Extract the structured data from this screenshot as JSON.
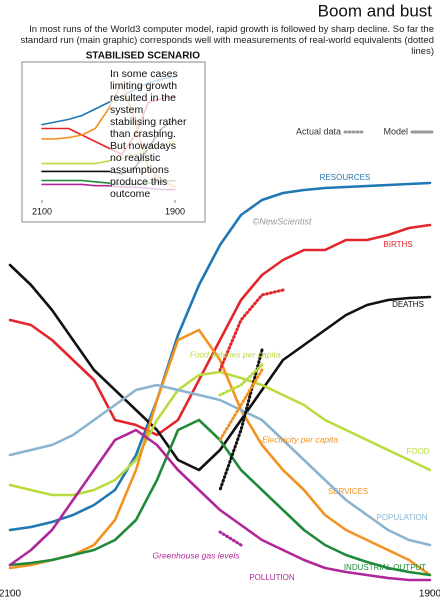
{
  "chart_data": [
    {
      "type": "line",
      "title": "Boom and bust",
      "subtitle": "In most runs of the World3 computer model, rapid growth is followed by sharp decline. So far the standard run (main graphic) corresponds well with measurements of real-world equivalents (dotted lines)",
      "credit": "©NewScientist",
      "legend_labels": [
        "Model",
        "Actual data"
      ],
      "x": [
        1900,
        1910,
        1920,
        1930,
        1940,
        1950,
        1960,
        1970,
        1980,
        1990,
        2000,
        2010,
        2020,
        2030,
        2040,
        2050,
        2060,
        2070,
        2080,
        2090,
        2100
      ],
      "xlim": [
        1900,
        2100
      ],
      "xticks": [
        1900,
        2100
      ],
      "ylim": [
        0,
        530
      ],
      "series": [
        {
          "name": "RESOURCES",
          "color": "#1f77b4",
          "style": "solid",
          "values": [
            407,
            406,
            405,
            404,
            403,
            402,
            400,
            397,
            390,
            375,
            345,
            305,
            255,
            190,
            135,
            100,
            85,
            75,
            68,
            63,
            60
          ]
        },
        {
          "name": "BIRTHS",
          "color": "#e3262b",
          "style": "solid",
          "values": [
            365,
            362,
            355,
            350,
            350,
            340,
            340,
            330,
            315,
            290,
            250,
            210,
            170,
            155,
            165,
            170,
            210,
            230,
            250,
            265,
            270
          ]
        },
        {
          "name": "DEATHS",
          "color": "#111111",
          "style": "solid",
          "values": [
            293,
            292,
            290,
            285,
            275,
            260,
            245,
            230,
            200,
            170,
            140,
            120,
            130,
            160,
            180,
            200,
            220,
            250,
            280,
            305,
            325
          ]
        },
        {
          "name": "FOOD",
          "color": "#b9dc3c",
          "style": "solid",
          "values": [
            120,
            130,
            140,
            150,
            160,
            170,
            185,
            195,
            205,
            212,
            218,
            215,
            200,
            170,
            130,
            110,
            100,
            95,
            95,
            100,
            105
          ]
        },
        {
          "name": "SERVICES",
          "color": "#f39221",
          "style": "solid",
          "values": [
            15,
            30,
            40,
            50,
            60,
            75,
            100,
            120,
            145,
            180,
            230,
            260,
            250,
            190,
            120,
            70,
            45,
            35,
            30,
            25,
            22
          ]
        },
        {
          "name": "POPULATION",
          "color": "#8ab4d0",
          "style": "solid",
          "values": [
            45,
            50,
            60,
            75,
            90,
            110,
            130,
            150,
            170,
            180,
            190,
            195,
            200,
            205,
            200,
            185,
            170,
            155,
            145,
            140,
            135
          ]
        },
        {
          "name": "INDUSTRIAL OUTPUT",
          "color": "#1f8a3a",
          "style": "solid",
          "values": [
            15,
            18,
            22,
            28,
            35,
            45,
            60,
            80,
            100,
            120,
            150,
            170,
            160,
            110,
            70,
            50,
            40,
            35,
            30,
            27,
            25
          ]
        },
        {
          "name": "POLLUTION",
          "color": "#b0279a",
          "style": "solid",
          "values": [
            10,
            10,
            12,
            15,
            18,
            22,
            30,
            40,
            50,
            65,
            80,
            100,
            120,
            145,
            160,
            150,
            120,
            90,
            60,
            40,
            25
          ]
        },
        {
          "color": "#e3262b",
          "style": "dotted",
          "values": [
            null,
            null,
            null,
            null,
            null,
            null,
            null,
            300,
            295,
            270,
            220,
            null,
            null,
            null,
            null,
            null,
            null,
            null,
            null,
            null,
            null
          ]
        },
        {
          "color": "#111111",
          "style": "dotted",
          "values": [
            null,
            null,
            null,
            null,
            null,
            null,
            null,
            null,
            240,
            160,
            100,
            null,
            null,
            null,
            null,
            null,
            null,
            null,
            null,
            null,
            null
          ]
        },
        {
          "name": "Food calories per capita",
          "color": "#b9dc3c",
          "style": "dotted",
          "values": [
            null,
            null,
            null,
            null,
            null,
            null,
            null,
            null,
            225,
            205,
            195,
            null,
            null,
            null,
            null,
            null,
            null,
            null,
            null,
            null,
            null
          ]
        },
        {
          "name": "Electricity per capita",
          "color": "#f39221",
          "style": "dotted",
          "values": [
            null,
            null,
            null,
            null,
            null,
            null,
            null,
            null,
            220,
            185,
            150,
            null,
            null,
            null,
            null,
            null,
            null,
            null,
            null,
            null,
            null
          ]
        },
        {
          "name": "Greenhouse gas levels",
          "color": "#b0279a",
          "style": "dotted",
          "values": [
            null,
            null,
            null,
            null,
            null,
            null,
            null,
            null,
            null,
            45,
            58,
            null,
            null,
            null,
            null,
            null,
            null,
            null,
            null,
            null,
            null
          ]
        }
      ]
    },
    {
      "type": "line",
      "title": "STABILISED SCENARIO",
      "note": "In some cases limiting growth resulted in the system stabilising rather than crashing. But nowadays no realistic assumptions produce this outcome",
      "x": [
        1900,
        1920,
        1940,
        1960,
        1980,
        2000,
        2020,
        2040,
        2060,
        2080,
        2100
      ],
      "xlim": [
        1900,
        2100
      ],
      "xticks": [
        1900,
        2100
      ],
      "ylim": [
        0,
        100
      ],
      "series": [
        {
          "color": "#1f77b4",
          "values": [
            95,
            93,
            90,
            85,
            80,
            75,
            70,
            65,
            62,
            60,
            58
          ]
        },
        {
          "color": "#e3262b",
          "values": [
            80,
            78,
            75,
            50,
            35,
            40,
            45,
            50,
            55,
            55,
            55
          ]
        },
        {
          "color": "#f39221",
          "values": [
            10,
            15,
            25,
            60,
            90,
            70,
            55,
            50,
            48,
            47,
            47
          ]
        },
        {
          "color": "#111111",
          "values": [
            62,
            55,
            40,
            25,
            20,
            22,
            22,
            22,
            22,
            22,
            22
          ]
        },
        {
          "color": "#b9dc3c",
          "values": [
            45,
            42,
            40,
            35,
            32,
            30,
            28,
            28,
            28,
            28,
            28
          ]
        },
        {
          "color": "#1f8a3a",
          "values": [
            15,
            14,
            13,
            12,
            12,
            13,
            14,
            15,
            15,
            15,
            15
          ]
        },
        {
          "color": "#b0279a",
          "values": [
            8,
            8,
            9,
            10,
            10,
            11,
            11,
            12,
            12,
            12,
            12
          ]
        }
      ]
    }
  ]
}
